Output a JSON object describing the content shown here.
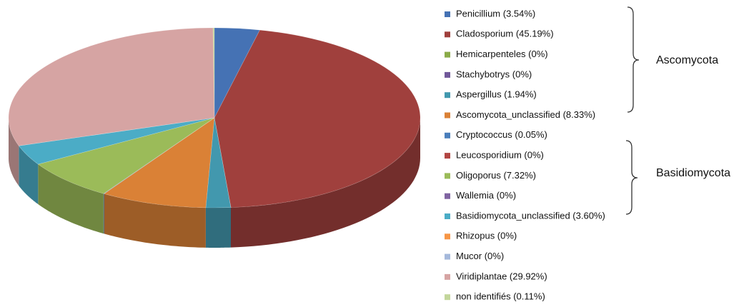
{
  "chart_data": {
    "type": "pie",
    "categories": [
      "Penicillium (3.54%)",
      "Cladosporium (45.19%)",
      "Hemicarpenteles (0%)",
      "Stachybotrys (0%)",
      "Aspergillus (1.94%)",
      "Ascomycota_unclassified (8.33%)",
      "Cryptococcus (0.05%)",
      "Leucosporidium (0%)",
      "Oligoporus (7.32%)",
      "Wallemia (0%)",
      "Basidiomycota_unclassified (3.60%)",
      "Rhizopus (0%)",
      "Mucor (0%)",
      "Viridiplantae (29.92%)",
      "non identifiés (0.11%)"
    ],
    "values": [
      3.54,
      45.19,
      0,
      0,
      1.94,
      8.33,
      0.05,
      0,
      7.32,
      0,
      3.6,
      0,
      0,
      29.92,
      0.11
    ],
    "colors": [
      "#4572b4",
      "#a0403d",
      "#8aab48",
      "#71589a",
      "#4298ae",
      "#da8136",
      "#4a7ebb",
      "#b24643",
      "#9bbb59",
      "#8064a2",
      "#4bacc6",
      "#f79646",
      "#a5b9db",
      "#d6a4a3",
      "#c3d69b"
    ],
    "annotations": [
      "Ascomycota",
      "Basidiomycota"
    ]
  }
}
